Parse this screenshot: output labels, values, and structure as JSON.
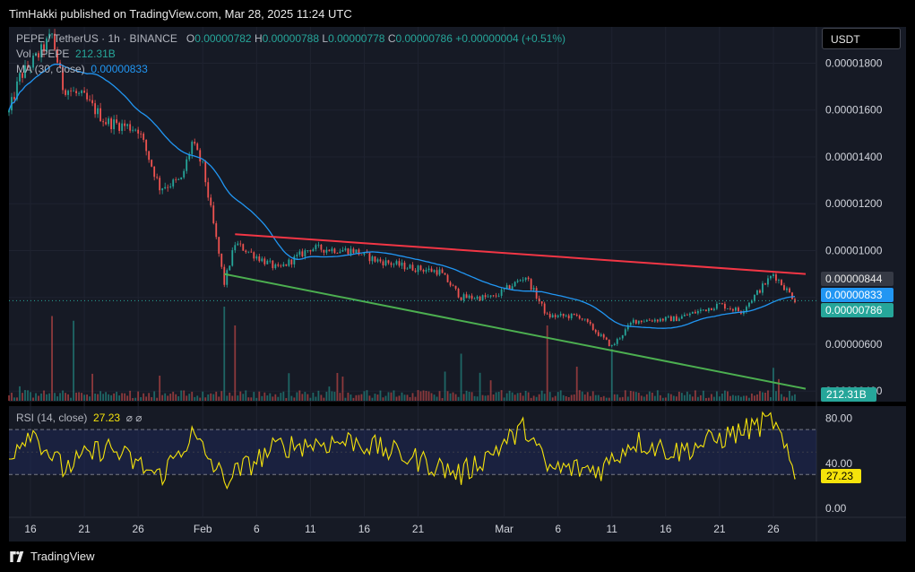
{
  "header": {
    "published": "TimHakki published on TradingView.com, Mar 28, 2025 11:24 UTC"
  },
  "footer": {
    "brand": "TradingView"
  },
  "currency_button": "USDT",
  "legend": {
    "symbol": "PEPE / TetherUS · 1h · BINANCE",
    "o_label": "O",
    "o": "0.00000782",
    "h_label": "H",
    "h": "0.00000788",
    "l_label": "L",
    "l": "0.00000778",
    "c_label": "C",
    "c": "0.00000786",
    "change": "+0.00000004 (+0.51%)",
    "vol_label": "Vol · PEPE",
    "vol": "212.31B",
    "ma_label": "MA (30, close)",
    "ma": "0.00000833",
    "rsi_label": "RSI (14, close)",
    "rsi": "27.23",
    "eye_icons": "⌀ ⌀"
  },
  "price_badges": {
    "resistance_now": "0.00000844",
    "ma_now": "0.00000833",
    "last_price": "0.00000786",
    "volume": "212.31B",
    "rsi": "27.23"
  },
  "colors": {
    "background": "#161a25",
    "up": "#26a69a",
    "down": "#ef5350",
    "ma": "#2196f3",
    "resistance": "#f23645",
    "support": "#4caf50",
    "rsi": "#f5e30b"
  },
  "chart_data": [
    {
      "type": "candlestick",
      "title": "PEPE / TetherUS · 1h · BINANCE",
      "y_ticks": [
        "0.00001800",
        "0.00001600",
        "0.00001400",
        "0.00001200",
        "0.00001000",
        "0.00000800",
        "0.00000600",
        "0.00000400"
      ],
      "ylim": [
        3.55e-06,
        1.955e-05
      ],
      "x_ticks": [
        "16",
        "21",
        "26",
        "Feb",
        "6",
        "11",
        "16",
        "21",
        "Mar",
        "6",
        "11",
        "16",
        "21",
        "26"
      ],
      "x_range": [
        "2025-01-14",
        "2025-03-30"
      ],
      "price_path": [
        {
          "date": "2025-01-14",
          "price": 1.59e-05
        },
        {
          "date": "2025-01-15",
          "price": 1.74e-05
        },
        {
          "date": "2025-01-17",
          "price": 1.85e-05
        },
        {
          "date": "2025-01-18",
          "price": 1.92e-05
        },
        {
          "date": "2025-01-19",
          "price": 1.7e-05
        },
        {
          "date": "2025-01-21",
          "price": 1.65e-05
        },
        {
          "date": "2025-01-23",
          "price": 1.55e-05
        },
        {
          "date": "2025-01-26",
          "price": 1.52e-05
        },
        {
          "date": "2025-01-28",
          "price": 1.27e-05
        },
        {
          "date": "2025-01-30",
          "price": 1.3e-05
        },
        {
          "date": "2025-01-31",
          "price": 1.46e-05
        },
        {
          "date": "2025-02-01",
          "price": 1.36e-05
        },
        {
          "date": "2025-02-03",
          "price": 8.6e-06
        },
        {
          "date": "2025-02-04",
          "price": 1.03e-05
        },
        {
          "date": "2025-02-08",
          "price": 9.2e-06
        },
        {
          "date": "2025-02-11",
          "price": 1.01e-05
        },
        {
          "date": "2025-02-15",
          "price": 1e-05
        },
        {
          "date": "2025-02-17",
          "price": 9.6e-06
        },
        {
          "date": "2025-02-20",
          "price": 9.3e-06
        },
        {
          "date": "2025-02-23",
          "price": 9.1e-06
        },
        {
          "date": "2025-02-25",
          "price": 8e-06
        },
        {
          "date": "2025-02-28",
          "price": 8e-06
        },
        {
          "date": "2025-03-03",
          "price": 8.9e-06
        },
        {
          "date": "2025-03-05",
          "price": 7.2e-06
        },
        {
          "date": "2025-03-08",
          "price": 7.2e-06
        },
        {
          "date": "2025-03-11",
          "price": 5.9e-06
        },
        {
          "date": "2025-03-13",
          "price": 7e-06
        },
        {
          "date": "2025-03-17",
          "price": 7.1e-06
        },
        {
          "date": "2025-03-21",
          "price": 7.7e-06
        },
        {
          "date": "2025-03-23",
          "price": 7.4e-06
        },
        {
          "date": "2025-03-26",
          "price": 9e-06
        },
        {
          "date": "2025-03-28",
          "price": 7.9e-06
        }
      ],
      "resistance_line": [
        {
          "date": "2025-02-04",
          "price": 1.07e-05
        },
        {
          "date": "2025-03-29",
          "price": 9e-06
        }
      ],
      "support_line": [
        {
          "date": "2025-02-03",
          "price": 9e-06
        },
        {
          "date": "2025-03-29",
          "price": 4.1e-06
        }
      ],
      "last_price": 7.86e-06,
      "ma_30": 8.33e-06,
      "resistance_now": 8.44e-06
    },
    {
      "type": "bar",
      "title": "Vol · PEPE",
      "last_value": "212.31B",
      "spikes": [
        {
          "date": "2025-01-18",
          "level": 0.9
        },
        {
          "date": "2025-01-20",
          "level": 0.85
        },
        {
          "date": "2025-02-03",
          "level": 1.0
        },
        {
          "date": "2025-02-04",
          "level": 0.8
        },
        {
          "date": "2025-02-25",
          "level": 0.5
        },
        {
          "date": "2025-03-05",
          "level": 0.8
        },
        {
          "date": "2025-03-11",
          "level": 0.55
        },
        {
          "date": "2025-03-26",
          "level": 0.35
        }
      ]
    },
    {
      "type": "line",
      "title": "RSI (14, close)",
      "y_ticks": [
        "80.00",
        "40.00",
        "0.00"
      ],
      "ylim": [
        -8,
        90
      ],
      "bands": [
        70,
        30
      ],
      "last_value": 27.23,
      "anchors": [
        {
          "date": "2025-01-14",
          "rsi": 48
        },
        {
          "date": "2025-01-16",
          "rsi": 70
        },
        {
          "date": "2025-01-19",
          "rsi": 35
        },
        {
          "date": "2025-01-23",
          "rsi": 55
        },
        {
          "date": "2025-01-28",
          "rsi": 28
        },
        {
          "date": "2025-01-31",
          "rsi": 65
        },
        {
          "date": "2025-02-03",
          "rsi": 25
        },
        {
          "date": "2025-02-08",
          "rsi": 55
        },
        {
          "date": "2025-02-15",
          "rsi": 60
        },
        {
          "date": "2025-02-22",
          "rsi": 40
        },
        {
          "date": "2025-02-25",
          "rsi": 30
        },
        {
          "date": "2025-03-03",
          "rsi": 72
        },
        {
          "date": "2025-03-05",
          "rsi": 35
        },
        {
          "date": "2025-03-10",
          "rsi": 35
        },
        {
          "date": "2025-03-13",
          "rsi": 60
        },
        {
          "date": "2025-03-17",
          "rsi": 50
        },
        {
          "date": "2025-03-21",
          "rsi": 62
        },
        {
          "date": "2025-03-26",
          "rsi": 78
        },
        {
          "date": "2025-03-28",
          "rsi": 27.23
        }
      ]
    }
  ]
}
